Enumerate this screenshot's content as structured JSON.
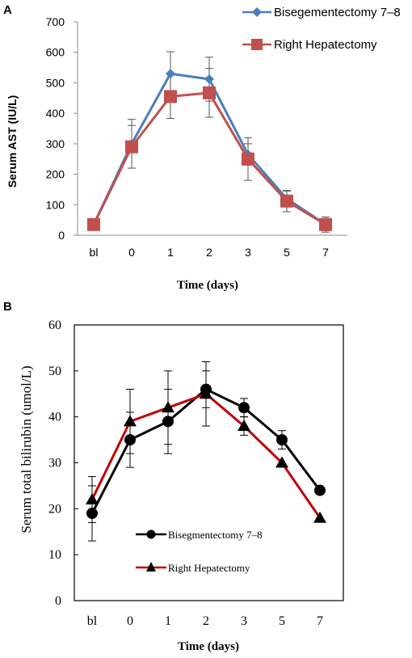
{
  "chart_data": [
    {
      "panel": "A",
      "type": "line",
      "categories": [
        "bl",
        "0",
        "1",
        "2",
        "3",
        "5",
        "7"
      ],
      "xlabel": "Time (days)",
      "ylabel": "Serum AST (IU/L)",
      "ylim": [
        0,
        700
      ],
      "yticks": [
        "0",
        "100",
        "200",
        "300",
        "400",
        "500",
        "600",
        "700"
      ],
      "grid": false,
      "legend_position": "top-right",
      "series": [
        {
          "name": "Bisegementectomy 7–8",
          "values": [
            35,
            300,
            530,
            512,
            265,
            120,
            35
          ],
          "error": [
            0,
            80,
            72,
            72,
            35,
            25,
            20
          ],
          "color": "#4a7ebb",
          "marker": "diamond"
        },
        {
          "name": "Right Hepatectomy",
          "values": [
            35,
            290,
            455,
            467,
            250,
            112,
            35
          ],
          "error": [
            0,
            70,
            72,
            80,
            70,
            35,
            25
          ],
          "color": "#c0504d",
          "marker": "square"
        }
      ]
    },
    {
      "panel": "B",
      "type": "line",
      "categories": [
        "bl",
        "0",
        "1",
        "2",
        "3",
        "5",
        "7"
      ],
      "xlabel": "Time (days)",
      "ylabel": "Serum total bilirubin (umol/L)",
      "ylim": [
        0,
        60
      ],
      "yticks": [
        "0",
        "10",
        "20",
        "30",
        "40",
        "50",
        "60"
      ],
      "grid": false,
      "legend_position": "bottom-center",
      "series": [
        {
          "name": "Bisegmentectomy  7–8",
          "values": [
            19,
            35,
            39,
            46,
            42,
            35,
            24
          ],
          "error": [
            6,
            6,
            7,
            4,
            2,
            2,
            0
          ],
          "color": "#000000",
          "line_color": "#000000",
          "marker": "circle"
        },
        {
          "name": "Right Hepatectomy",
          "values": [
            22,
            39,
            42,
            45,
            38,
            30,
            18
          ],
          "error": [
            5,
            7,
            8,
            7,
            2,
            0,
            0
          ],
          "color": "#000000",
          "line_color": "#c00000",
          "marker": "triangle"
        }
      ]
    }
  ]
}
